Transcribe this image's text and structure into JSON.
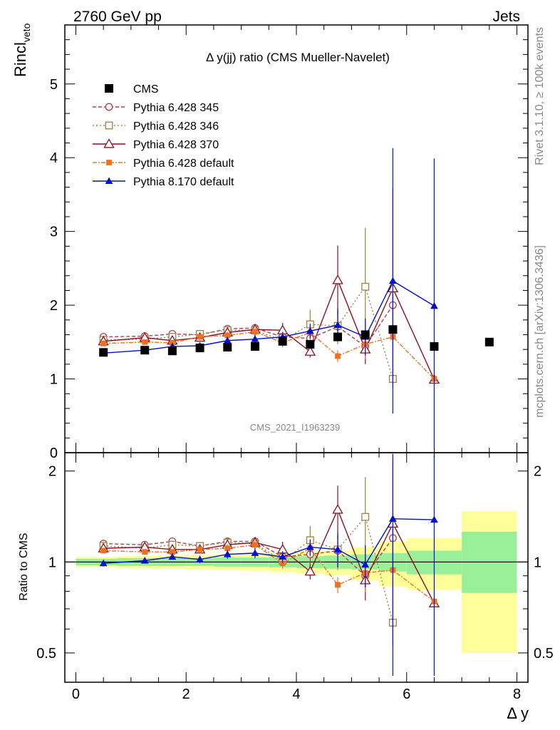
{
  "header": {
    "left": "2760 GeV pp",
    "right": "Jets"
  },
  "side_labels": {
    "rivet": "Rivet 3.1.10, ≥ 100k events",
    "mcplots": "mcplots.cern.ch [arXiv:1306.3436]"
  },
  "chart_data": {
    "type": "scatter",
    "title": "Δ y(jj) ratio (CMS Mueller-Navelet)",
    "watermark": "CMS_2021_I1963239",
    "ylabel_main": "Rincl",
    "ylabel_main_sub": "veto",
    "ylabel_ratio": "Ratio to CMS",
    "xlabel": "Δ y",
    "xlim": [
      -0.2,
      8.2
    ],
    "ylim_main": [
      0,
      5.8
    ],
    "ylim_ratio": [
      0.4,
      2.3
    ],
    "ratio_log_scale": true,
    "x_ticks": [
      0,
      2,
      4,
      6,
      8
    ],
    "y_ticks_main": [
      0,
      1,
      2,
      3,
      4,
      5
    ],
    "y_ticks_ratio": [
      0.5,
      1,
      2
    ],
    "legend_position": "top-left",
    "data": {
      "name": "CMS",
      "color": "#000000",
      "x": [
        0.5,
        1.25,
        1.75,
        2.25,
        2.75,
        3.25,
        3.75,
        4.25,
        4.75,
        5.25,
        5.75,
        6.5,
        7.5
      ],
      "y": [
        1.36,
        1.39,
        1.38,
        1.42,
        1.43,
        1.44,
        1.51,
        1.47,
        1.57,
        1.6,
        1.67,
        1.44,
        1.5
      ],
      "band_edges": [
        0,
        0.75,
        1.5,
        2,
        2.5,
        3,
        3.5,
        4,
        4.5,
        5,
        5.5,
        6,
        7,
        8
      ],
      "band_stat_lo": [
        0.975,
        0.97,
        0.97,
        0.97,
        0.965,
        0.965,
        0.96,
        0.955,
        0.95,
        0.945,
        0.93,
        0.91,
        0.79
      ],
      "band_stat_hi": [
        1.025,
        1.03,
        1.03,
        1.03,
        1.035,
        1.035,
        1.04,
        1.045,
        1.05,
        1.06,
        1.07,
        1.09,
        1.26
      ],
      "band_tot_lo": [
        0.96,
        0.955,
        0.95,
        0.945,
        0.94,
        0.935,
        0.925,
        0.915,
        0.905,
        0.87,
        0.83,
        0.81,
        0.5
      ],
      "band_tot_hi": [
        1.04,
        1.045,
        1.05,
        1.055,
        1.06,
        1.065,
        1.07,
        1.08,
        1.09,
        1.12,
        1.17,
        1.2,
        1.47
      ]
    },
    "series": [
      {
        "name": "Pythia 6.428 345",
        "color": "#b04050",
        "dash": "5,3",
        "marker": "circle-open",
        "x": [
          0.5,
          1.25,
          1.75,
          2.25,
          2.75,
          3.25,
          3.75,
          4.25,
          4.75,
          5.25,
          5.75
        ],
        "y": [
          1.57,
          1.58,
          1.61,
          1.6,
          1.68,
          1.69,
          1.57,
          1.55,
          1.71,
          1.44,
          2.0
        ],
        "err": [
          0.03,
          0.03,
          0.03,
          0.04,
          0.05,
          0.06,
          0.09,
          0.12,
          0.2,
          0.15,
          0.35
        ],
        "ratio": [
          1.15,
          1.14,
          1.17,
          1.13,
          1.17,
          1.17,
          1.04,
          1.06,
          1.09,
          0.9,
          1.2
        ]
      },
      {
        "name": "Pythia 6.428 346",
        "color": "#a08040",
        "dash": "2,3",
        "marker": "square-open",
        "x": [
          0.5,
          1.25,
          1.75,
          2.25,
          2.75,
          3.25,
          3.75,
          4.25,
          4.75,
          5.25,
          5.75
        ],
        "y": [
          1.53,
          1.54,
          1.57,
          1.61,
          1.66,
          1.66,
          1.52,
          1.74,
          1.72,
          2.25,
          1.0
        ],
        "err": [
          0.03,
          0.03,
          0.03,
          0.04,
          0.05,
          0.06,
          0.08,
          0.2,
          0.25,
          0.8,
          0.0
        ],
        "ratio": [
          1.13,
          1.11,
          1.14,
          1.13,
          1.16,
          1.15,
          1.01,
          1.18,
          1.1,
          1.41,
          0.63
        ]
      },
      {
        "name": "Pythia 6.428 370",
        "color": "#8b1020",
        "dash": "",
        "marker": "triangle-open",
        "x": [
          0.5,
          1.25,
          1.75,
          2.25,
          2.75,
          3.25,
          3.75,
          4.25,
          4.75,
          5.25,
          5.75,
          6.5
        ],
        "y": [
          1.51,
          1.56,
          1.52,
          1.56,
          1.63,
          1.67,
          1.66,
          1.37,
          2.34,
          1.4,
          2.23,
          0.99
        ],
        "err": [
          0.03,
          0.03,
          0.03,
          0.04,
          0.05,
          0.06,
          0.1,
          0.08,
          0.47,
          0.2,
          1.35,
          0.0
        ],
        "ratio": [
          1.11,
          1.12,
          1.1,
          1.1,
          1.14,
          1.16,
          1.1,
          0.93,
          1.49,
          0.87,
          1.34,
          0.73
        ]
      },
      {
        "name": "Pythia 6.428 default",
        "color": "#f07020",
        "dash": "6,2,2,2",
        "marker": "square-filled",
        "x": [
          0.5,
          1.25,
          1.75,
          2.25,
          2.75,
          3.25,
          3.75,
          4.25,
          4.75,
          5.25,
          5.75,
          6.5
        ],
        "y": [
          1.48,
          1.5,
          1.49,
          1.57,
          1.59,
          1.64,
          1.49,
          1.63,
          1.31,
          1.47,
          1.57,
          1.0
        ],
        "err": [
          0.03,
          0.03,
          0.03,
          0.04,
          0.05,
          0.06,
          0.06,
          0.1,
          0.08,
          0.2,
          0.15,
          0.0
        ],
        "ratio": [
          1.09,
          1.08,
          1.08,
          1.1,
          1.11,
          1.14,
          0.99,
          1.11,
          0.84,
          0.92,
          0.94,
          0.74
        ]
      },
      {
        "name": "Pythia 8.170 default",
        "color": "#0010d0",
        "dash": "",
        "marker": "triangle-filled",
        "x": [
          0.5,
          1.25,
          1.75,
          2.25,
          2.75,
          3.25,
          3.75,
          4.25,
          4.75,
          5.25,
          5.75,
          6.5
        ],
        "y": [
          1.35,
          1.39,
          1.44,
          1.45,
          1.52,
          1.54,
          1.57,
          1.65,
          1.73,
          1.57,
          2.33,
          1.99
        ],
        "err": [
          0.03,
          0.03,
          0.03,
          0.04,
          0.05,
          0.06,
          0.07,
          0.1,
          0.22,
          0.25,
          1.8,
          2.0
        ],
        "ratio": [
          0.99,
          1.01,
          1.04,
          1.02,
          1.06,
          1.07,
          1.04,
          1.12,
          1.1,
          0.98,
          1.39,
          1.38
        ]
      }
    ]
  }
}
